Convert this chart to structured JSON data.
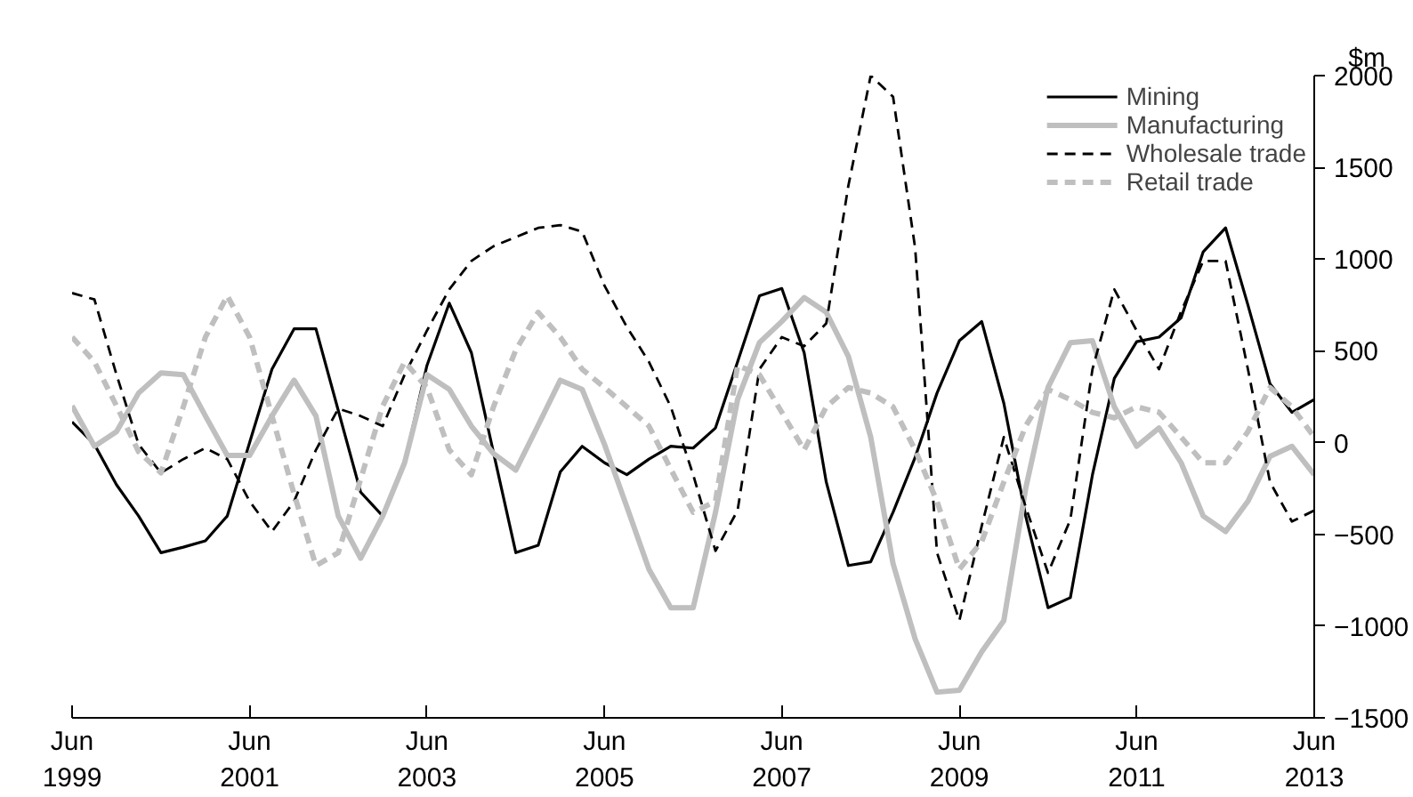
{
  "chart_data": {
    "type": "line",
    "ylabel": "$m",
    "x": [
      "1999-06",
      "1999-09",
      "1999-12",
      "2000-03",
      "2000-06",
      "2000-09",
      "2000-12",
      "2001-03",
      "2001-06",
      "2001-09",
      "2001-12",
      "2002-03",
      "2002-06",
      "2002-09",
      "2002-12",
      "2003-03",
      "2003-06",
      "2003-09",
      "2003-12",
      "2004-03",
      "2004-06",
      "2004-09",
      "2004-12",
      "2005-03",
      "2005-06",
      "2005-09",
      "2005-12",
      "2006-03",
      "2006-06",
      "2006-09",
      "2006-12",
      "2007-03",
      "2007-06",
      "2007-09",
      "2007-12",
      "2008-03",
      "2008-06",
      "2008-09",
      "2008-12",
      "2009-03",
      "2009-06",
      "2009-09",
      "2009-12",
      "2010-03",
      "2010-06",
      "2010-09",
      "2010-12",
      "2011-03",
      "2011-06",
      "2011-09",
      "2011-12",
      "2012-03",
      "2012-06",
      "2012-09",
      "2012-12",
      "2013-03",
      "2013-06"
    ],
    "series": [
      {
        "name": "Mining",
        "color": "#000000",
        "line_style": "solid",
        "values": [
          113,
          -10,
          -230,
          -400,
          -600,
          -570,
          -535,
          -400,
          0,
          400,
          620,
          620,
          175,
          -270,
          -400,
          -110,
          420,
          760,
          490,
          -55,
          -600,
          -560,
          -160,
          -20,
          -110,
          -175,
          -90,
          -20,
          -30,
          80,
          440,
          800,
          840,
          490,
          -215,
          -670,
          -650,
          -380,
          -80,
          270,
          555,
          660,
          215,
          -400,
          -900,
          -845,
          -175,
          350,
          550,
          575,
          680,
          1040,
          1170,
          750,
          320,
          165,
          235
        ]
      },
      {
        "name": "Manufacturing",
        "color": "#bfbfbf",
        "line_style": "solid",
        "values": [
          200,
          -20,
          60,
          270,
          380,
          370,
          145,
          -70,
          -70,
          145,
          340,
          145,
          -400,
          -630,
          -400,
          -110,
          370,
          290,
          90,
          -60,
          -150,
          95,
          340,
          290,
          -10,
          -350,
          -690,
          -900,
          -900,
          -380,
          235,
          545,
          660,
          790,
          710,
          470,
          30,
          -660,
          -1070,
          -1360,
          -1350,
          -1140,
          -970,
          -250,
          300,
          545,
          555,
          195,
          -20,
          80,
          -110,
          -400,
          -485,
          -320,
          -75,
          -20,
          -175
        ]
      },
      {
        "name": "Wholesale trade",
        "color": "#000000",
        "line_style": "dashed",
        "values": [
          815,
          780,
          370,
          -10,
          -165,
          -90,
          -30,
          -90,
          -320,
          -485,
          -320,
          -40,
          185,
          145,
          90,
          370,
          610,
          835,
          990,
          1070,
          1120,
          1170,
          1185,
          1150,
          855,
          630,
          440,
          195,
          -175,
          -590,
          -370,
          400,
          575,
          525,
          650,
          1400,
          2000,
          1885,
          1060,
          -600,
          -970,
          -455,
          30,
          -350,
          -710,
          -420,
          400,
          835,
          610,
          400,
          715,
          990,
          990,
          400,
          -215,
          -430,
          -370
        ]
      },
      {
        "name": "Retail trade",
        "color": "#bfbfbf",
        "line_style": "dashed",
        "values": [
          575,
          440,
          200,
          -50,
          -165,
          195,
          575,
          800,
          575,
          145,
          -280,
          -670,
          -600,
          -200,
          200,
          440,
          300,
          -40,
          -175,
          195,
          505,
          710,
          575,
          400,
          300,
          195,
          90,
          -145,
          -380,
          -320,
          420,
          370,
          165,
          -40,
          195,
          300,
          270,
          195,
          -40,
          -320,
          -690,
          -540,
          -215,
          90,
          290,
          235,
          165,
          135,
          195,
          165,
          30,
          -110,
          -110,
          60,
          300,
          195,
          30
        ]
      }
    ],
    "xlim": [
      "1999-06",
      "2013-06"
    ],
    "xticks": [
      {
        "value": "1999-06",
        "label": "Jun\n1999"
      },
      {
        "value": "2001-06",
        "label": "Jun\n2001"
      },
      {
        "value": "2003-06",
        "label": "Jun\n2003"
      },
      {
        "value": "2005-06",
        "label": "Jun\n2005"
      },
      {
        "value": "2007-06",
        "label": "Jun\n2007"
      },
      {
        "value": "2009-06",
        "label": "Jun\n2009"
      },
      {
        "value": "2011-06",
        "label": "Jun\n2011"
      },
      {
        "value": "2013-06",
        "label": "Jun\n2013"
      }
    ],
    "ylim": [
      -1500,
      2000
    ],
    "yticks": [
      -1500,
      -1000,
      -500,
      0,
      500,
      1000,
      1500,
      2000
    ],
    "grid": false,
    "legend": "top right"
  }
}
